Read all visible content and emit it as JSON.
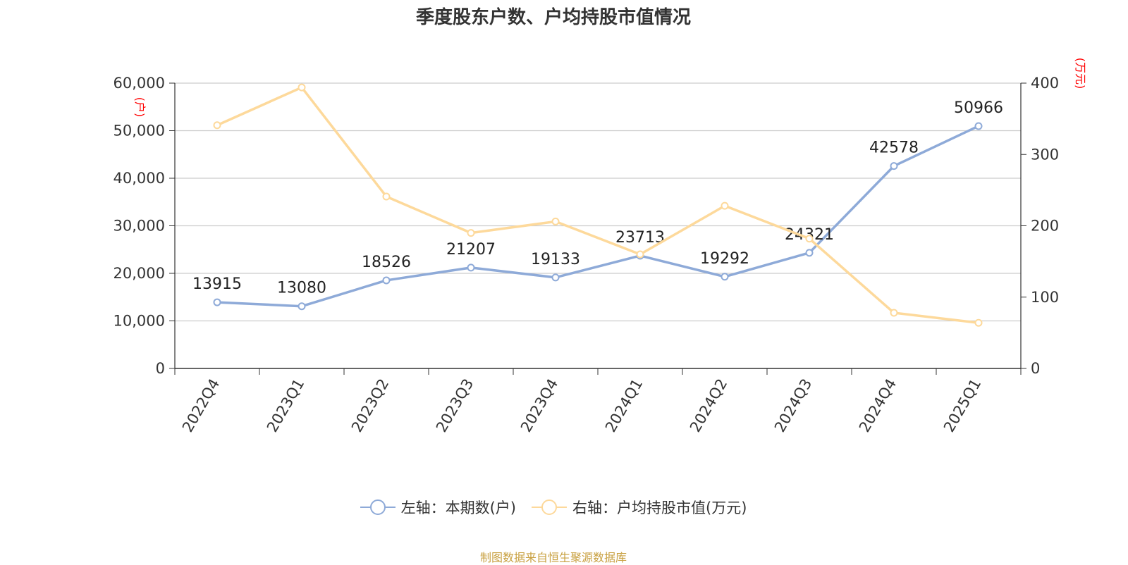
{
  "chart_data": {
    "type": "line",
    "title": "季度股东户数、户均持股市值情况",
    "categories": [
      "2022Q4",
      "2023Q1",
      "2023Q2",
      "2023Q3",
      "2023Q4",
      "2024Q1",
      "2024Q2",
      "2024Q3",
      "2024Q4",
      "2025Q1"
    ],
    "y_left": {
      "unit_label": "(户)",
      "ylim": [
        0,
        60000
      ],
      "ticks": [
        0,
        10000,
        20000,
        30000,
        40000,
        50000,
        60000
      ],
      "tick_labels": [
        "0",
        "10,000",
        "20,000",
        "30,000",
        "40,000",
        "50,000",
        "60,000"
      ]
    },
    "y_right": {
      "unit_label": "(万元)",
      "ylim": [
        0,
        400
      ],
      "ticks": [
        0,
        100,
        200,
        300,
        400
      ],
      "tick_labels": [
        "0",
        "100",
        "200",
        "300",
        "400"
      ]
    },
    "series": [
      {
        "name": "左轴：本期数(户)",
        "axis": "left",
        "color": "#8eaad8",
        "values": [
          13915,
          13080,
          18526,
          21207,
          19133,
          23713,
          19292,
          24321,
          42578,
          50966
        ],
        "data_labels": [
          "13915",
          "13080",
          "18526",
          "21207",
          "19133",
          "23713",
          "19292",
          "24321",
          "42578",
          "50966"
        ]
      },
      {
        "name": "右轴：户均持股市值(万元)",
        "axis": "right",
        "color": "#fdd99b",
        "values": [
          341,
          394,
          241,
          190,
          206,
          160,
          228,
          182,
          78,
          64
        ]
      }
    ],
    "grid": true,
    "legend_position": "bottom-center"
  },
  "source": "制图数据来自恒生聚源数据库",
  "colors": {
    "axis_unit": "#ff0000",
    "grid": "#cccccc",
    "axis": "#333333",
    "source": "#c8a040"
  }
}
